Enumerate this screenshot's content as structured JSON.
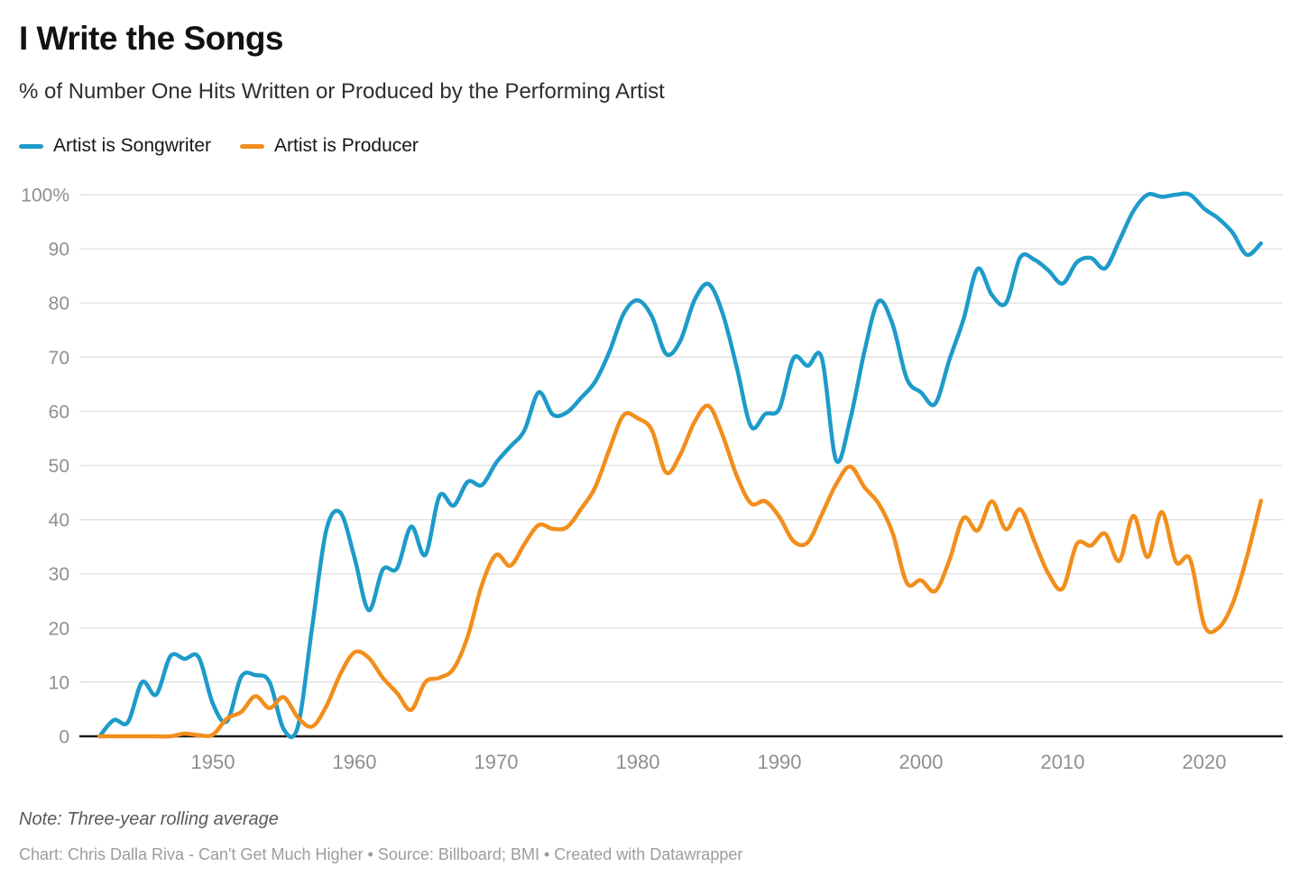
{
  "header": {
    "title": "I Write the Songs",
    "subtitle": "% of Number One Hits Written or Produced by the Performing Artist"
  },
  "legend": [
    {
      "label": "Artist is Songwriter",
      "color": "#1D9BC9"
    },
    {
      "label": "Artist is Producer",
      "color": "#F28E1B"
    }
  ],
  "footer": {
    "note": "Note: Three-year rolling average",
    "credit": "Chart: Chris Dalla Riva - Can't Get Much Higher • Source: Billboard; BMI • Created with Datawrapper"
  },
  "colors": {
    "grid": "#E3E3E3",
    "axis": "#1A1A1A",
    "tick_label": "#8F8F8F",
    "background": "#FFFFFF"
  },
  "chart_data": {
    "type": "line",
    "title": "I Write the Songs",
    "xlabel": "",
    "ylabel": "% of Number One Hits Written or Produced by the Performing Artist",
    "grid": "horizontal",
    "legend_position": "top",
    "xlim": [
      1942,
      2024
    ],
    "ylim": [
      0,
      100
    ],
    "x_ticks": [
      1950,
      1960,
      1970,
      1980,
      1990,
      2000,
      2010,
      2020
    ],
    "y_ticks": [
      0,
      10,
      20,
      30,
      40,
      50,
      60,
      70,
      80,
      90,
      100
    ],
    "y_top_tick_suffix": "%",
    "x": [
      1942,
      1943,
      1944,
      1945,
      1946,
      1947,
      1948,
      1949,
      1950,
      1951,
      1952,
      1953,
      1954,
      1955,
      1956,
      1957,
      1958,
      1959,
      1960,
      1961,
      1962,
      1963,
      1964,
      1965,
      1966,
      1967,
      1968,
      1969,
      1970,
      1971,
      1972,
      1973,
      1974,
      1975,
      1976,
      1977,
      1978,
      1979,
      1980,
      1981,
      1982,
      1983,
      1984,
      1985,
      1986,
      1987,
      1988,
      1989,
      1990,
      1991,
      1992,
      1993,
      1994,
      1995,
      1996,
      1997,
      1998,
      1999,
      2000,
      2001,
      2002,
      2003,
      2004,
      2005,
      2006,
      2007,
      2008,
      2009,
      2010,
      2011,
      2012,
      2013,
      2014,
      2015,
      2016,
      2017,
      2018,
      2019,
      2020,
      2021,
      2022,
      2023,
      2024
    ],
    "series": [
      {
        "name": "Artist is Songwriter",
        "color": "#1D9BC9",
        "values": [
          0,
          3,
          2.6,
          10,
          7.7,
          14.8,
          14.3,
          14.6,
          6,
          2.8,
          11,
          11.3,
          10,
          1.3,
          1.8,
          20,
          38,
          41.3,
          33,
          23.3,
          30.8,
          31,
          38.7,
          33.5,
          44.4,
          42.6,
          47,
          46.4,
          50.5,
          53.5,
          56.5,
          63.5,
          59.4,
          59.8,
          62.5,
          65.5,
          71,
          78,
          80.5,
          77.5,
          70.6,
          73,
          80.5,
          83.5,
          78,
          68,
          57.2,
          59.5,
          60.5,
          69.8,
          68.4,
          69.8,
          51,
          58.5,
          71,
          80.3,
          76,
          66,
          63.5,
          61.4,
          69.5,
          77,
          86.3,
          81.5,
          80,
          88.4,
          88,
          86,
          83.6,
          87.5,
          88.3,
          86.4,
          91.5,
          97,
          100,
          99.6,
          100,
          100,
          97.4,
          95.6,
          93,
          88.9,
          91
        ]
      },
      {
        "name": "Artist is Producer",
        "color": "#F28E1B",
        "values": [
          0,
          0,
          0,
          0,
          0,
          0,
          0.5,
          0.2,
          0.3,
          3.3,
          4.5,
          7.4,
          5.2,
          7.2,
          3.5,
          1.8,
          5.5,
          11.5,
          15.5,
          14.5,
          10.8,
          8,
          4.9,
          10,
          10.8,
          12.5,
          18.5,
          28,
          33.5,
          31.5,
          35.5,
          39,
          38.3,
          38.6,
          42,
          46,
          53,
          59.3,
          58.7,
          56.5,
          48.7,
          52,
          58,
          61,
          55.5,
          48,
          43,
          43.4,
          40.5,
          36,
          35.8,
          41,
          46.5,
          49.8,
          46,
          43,
          37.5,
          28.3,
          28.8,
          26.8,
          32.5,
          40.3,
          38,
          43.4,
          38.2,
          41.9,
          36,
          30,
          27.3,
          35.5,
          35.2,
          37.4,
          32.4,
          40.7,
          33.1,
          41.4,
          32.2,
          32.7,
          20.5,
          20,
          24.5,
          33,
          43.5
        ]
      }
    ]
  }
}
